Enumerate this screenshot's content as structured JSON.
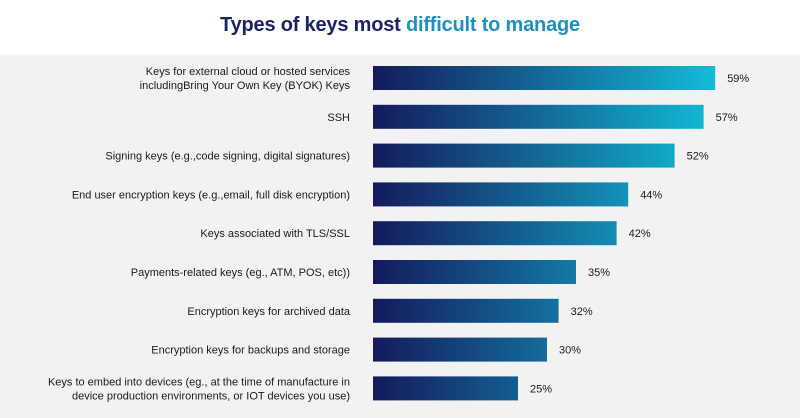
{
  "title_part1": "Types of keys most",
  "title_part2": "difficult to manage",
  "colors": {
    "title_dark": "#1a2366",
    "title_accent": "#1f8fbf",
    "bar_start": "#141a5c",
    "bar_end": "#12bcd8",
    "panel_bg": "#f2f2f2"
  },
  "chart_data": {
    "type": "bar",
    "orientation": "horizontal",
    "title": "Types of keys most difficult to manage",
    "categories": [
      [
        "Keys for external cloud or hosted services",
        "includingBring Your Own Key (BYOK) Keys"
      ],
      [
        "SSH"
      ],
      [
        "Signing keys (e.g.,code signing, digital signatures)"
      ],
      [
        "End user encryption keys (e.g.,email, full disk encryption)"
      ],
      [
        "Keys associated with TLS/SSL"
      ],
      [
        "Payments-related keys (eg., ATM, POS, etc))"
      ],
      [
        "Encryption keys for archived data"
      ],
      [
        "Encryption keys for backups and storage"
      ],
      [
        "Keys to embed into devices (eg., at the time of manufacture in",
        "device production environments, or IOT devices you use)"
      ]
    ],
    "values": [
      59,
      57,
      52,
      44,
      42,
      35,
      32,
      30,
      25
    ],
    "value_labels": [
      "59%",
      "57%",
      "52%",
      "44%",
      "42%",
      "35%",
      "32%",
      "30%",
      "25%"
    ],
    "unit": "%",
    "grid": false,
    "legend": "none"
  }
}
